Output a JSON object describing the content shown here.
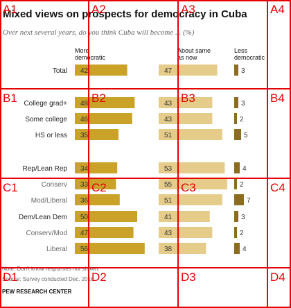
{
  "chart_data": {
    "type": "bar",
    "title": "Mixed views on prospects for democracy in Cuba",
    "subtitle": "Over next several years, do you think Cuba will become ... (%)",
    "columns": [
      {
        "label_lines": [
          "More",
          "democratic"
        ]
      },
      {
        "label_lines": [
          "About same",
          "as now"
        ]
      },
      {
        "label_lines": [
          "Less",
          "democratic"
        ]
      }
    ],
    "categories": [
      "Total",
      "College grad+",
      "Some college",
      "HS or less",
      "Rep/Lean Rep",
      "Conserv",
      "Mod/Liberal",
      "Dem/Lean Dem",
      "Conserv/Mod",
      "Liberal"
    ],
    "subgroup": [
      false,
      false,
      false,
      false,
      false,
      true,
      true,
      false,
      true,
      true
    ],
    "series": [
      {
        "values": [
          42,
          48,
          46,
          35,
          34,
          33,
          36,
          50,
          47,
          56
        ],
        "color": "#c9a227"
      },
      {
        "values": [
          47,
          43,
          43,
          51,
          53,
          55,
          51,
          41,
          43,
          38
        ],
        "color": "#e5cc8a"
      },
      {
        "values": [
          3,
          3,
          2,
          5,
          4,
          2,
          7,
          3,
          2,
          4
        ],
        "color": "#8c6d1f"
      }
    ],
    "footnote_lines": [
      "Note: Don't know responses not shown.",
      "Source: Survey conducted Dec. 2016."
    ],
    "source_brand": "PEW RESEARCH CENTER"
  },
  "grid_overlay": {
    "color": "#e60000",
    "labels": [
      "A1",
      "A2",
      "A3",
      "A4",
      "B1",
      "B2",
      "B3",
      "B4",
      "C1",
      "C2",
      "C3",
      "C4",
      "D1",
      "D2",
      "D3",
      "D4"
    ]
  }
}
